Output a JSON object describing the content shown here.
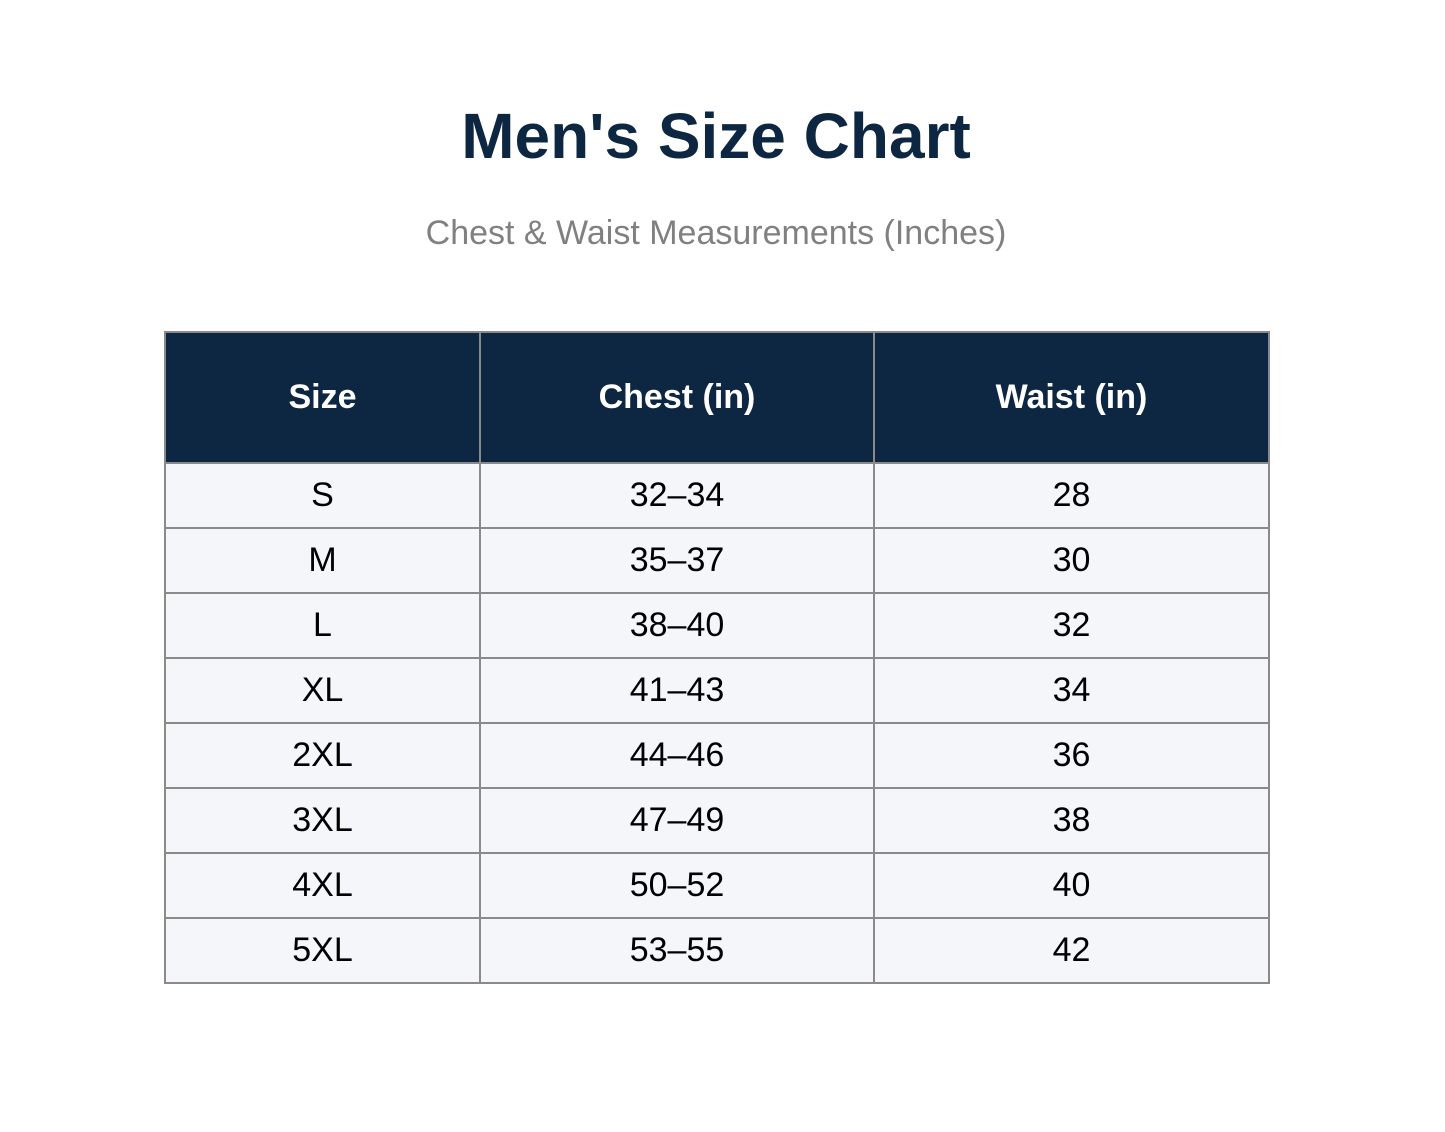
{
  "header": {
    "title": "Men's Size Chart",
    "subtitle": "Chest & Waist Measurements (Inches)"
  },
  "colors": {
    "header_bg": "#0d2742",
    "title": "#0d2742",
    "subtitle": "#808080",
    "row_bg": "#f4f6fa",
    "border": "#8a8a8a"
  },
  "table": {
    "columns": [
      "Size",
      "Chest (in)",
      "Waist (in)"
    ],
    "rows": [
      [
        "S",
        "32–34",
        "28"
      ],
      [
        "M",
        "35–37",
        "30"
      ],
      [
        "L",
        "38–40",
        "32"
      ],
      [
        "XL",
        "41–43",
        "34"
      ],
      [
        "2XL",
        "44–46",
        "36"
      ],
      [
        "3XL",
        "47–49",
        "38"
      ],
      [
        "4XL",
        "50–52",
        "40"
      ],
      [
        "5XL",
        "53–55",
        "42"
      ]
    ]
  }
}
